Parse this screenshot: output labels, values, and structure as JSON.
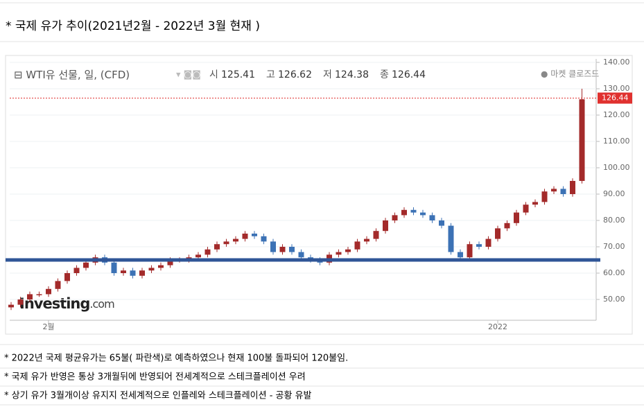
{
  "title": "* 국제 유가 추이(2021년2월 - 2022년 3월 현재 )",
  "chart_data": {
    "type": "candlestick",
    "title": "WTI유 선물, 일, (CFD)",
    "stats": [
      {
        "label": "시",
        "value": 125.41
      },
      {
        "label": "고",
        "value": 126.62
      },
      {
        "label": "저",
        "value": 124.38
      },
      {
        "label": "종",
        "value": 126.44
      }
    ],
    "status": "● 마켓 클로즈드",
    "brand": "Investing",
    "brand_suffix": ".com",
    "categories": [
      null,
      null,
      null,
      null,
      "2월",
      null,
      null,
      null,
      null,
      null,
      null,
      null,
      null,
      null,
      null,
      null,
      null,
      null,
      null,
      null,
      null,
      null,
      null,
      null,
      null,
      null,
      null,
      null,
      null,
      null,
      null,
      null,
      null,
      null,
      null,
      null,
      null,
      null,
      null,
      null,
      null,
      null,
      null,
      null,
      null,
      null,
      null,
      null,
      null,
      null,
      null,
      null,
      "2022",
      null,
      null,
      null,
      null,
      null,
      null,
      null,
      null,
      null
    ],
    "open": [
      47,
      48,
      50,
      52,
      52,
      54,
      57,
      60,
      62,
      64,
      66,
      64,
      60,
      61,
      59,
      61,
      62,
      63,
      65,
      65,
      66,
      67,
      69,
      71,
      72,
      73,
      75,
      74,
      72,
      68,
      70,
      68,
      66,
      65,
      64,
      67,
      68,
      69,
      72,
      73,
      76,
      80,
      82,
      84,
      83,
      82,
      80,
      78,
      68,
      66,
      71,
      70,
      73,
      77,
      79,
      83,
      86,
      87,
      91,
      92,
      90,
      95
    ],
    "high": [
      49,
      51,
      53,
      53,
      55,
      58,
      61,
      63,
      65,
      67,
      67,
      65,
      62,
      62,
      62,
      63,
      64,
      66,
      66,
      67,
      68,
      70,
      72,
      73,
      74,
      76,
      76,
      75,
      73,
      71,
      71,
      69,
      67,
      66,
      68,
      69,
      70,
      73,
      74,
      77,
      81,
      83,
      85,
      85,
      84,
      83,
      81,
      79,
      69,
      72,
      72,
      74,
      78,
      80,
      84,
      87,
      88,
      92,
      93,
      93,
      96,
      130
    ],
    "low": [
      46,
      47,
      49,
      51,
      51,
      53,
      56,
      59,
      61,
      63,
      63,
      59,
      59,
      58,
      58,
      60,
      61,
      62,
      64,
      64,
      65,
      66,
      68,
      70,
      71,
      72,
      73,
      71,
      67,
      67,
      67,
      65,
      64,
      63,
      63,
      66,
      67,
      68,
      71,
      72,
      75,
      79,
      81,
      82,
      81,
      79,
      77,
      67,
      65,
      65,
      69,
      69,
      72,
      76,
      78,
      82,
      85,
      86,
      90,
      89,
      89,
      94
    ],
    "close": [
      48,
      50,
      52,
      52,
      54,
      57,
      60,
      62,
      64,
      66,
      64,
      60,
      61,
      59,
      61,
      62,
      63,
      65,
      65,
      66,
      67,
      69,
      71,
      72,
      73,
      75,
      74,
      72,
      68,
      70,
      68,
      66,
      65,
      64,
      67,
      68,
      69,
      72,
      73,
      76,
      80,
      82,
      84,
      83,
      82,
      80,
      78,
      68,
      66,
      71,
      70,
      73,
      77,
      79,
      83,
      86,
      87,
      91,
      92,
      90,
      95,
      126
    ],
    "up_color": "#a32a2a",
    "down_color": "#3c72b5",
    "last_price": 126.44,
    "last_price_color": "#e0312f",
    "reference_line": {
      "value": 65,
      "color": "#2f5597"
    },
    "ylim": [
      45,
      140
    ],
    "yticks": [
      {
        "value": 50,
        "label": "50.00"
      },
      {
        "value": 60,
        "label": "60.00"
      },
      {
        "value": 70,
        "label": "70.00"
      },
      {
        "value": 80,
        "label": "80.00"
      },
      {
        "value": 90,
        "label": "90.00"
      },
      {
        "value": 100,
        "label": "100.00"
      },
      {
        "value": 110,
        "label": "110.00"
      },
      {
        "value": 120,
        "label": "120.00"
      },
      {
        "value": 130,
        "label": "130.00"
      },
      {
        "value": 140,
        "label": "140.00"
      }
    ],
    "grid": true
  },
  "notes": [
    "* 2022년 국제 평균유가는 65불( 파란색)로 예측하였으나 현재 100불 돌파되어 120불임.",
    "* 국제 유가 반영은 통상 3개월뒤에 반영되어 전세계적으로 스테크플레이션 우려",
    "* 상기 유가 3월개이상 유지지 전세계적으로 인플레와 스테크플레이션  - 공황 유발"
  ]
}
